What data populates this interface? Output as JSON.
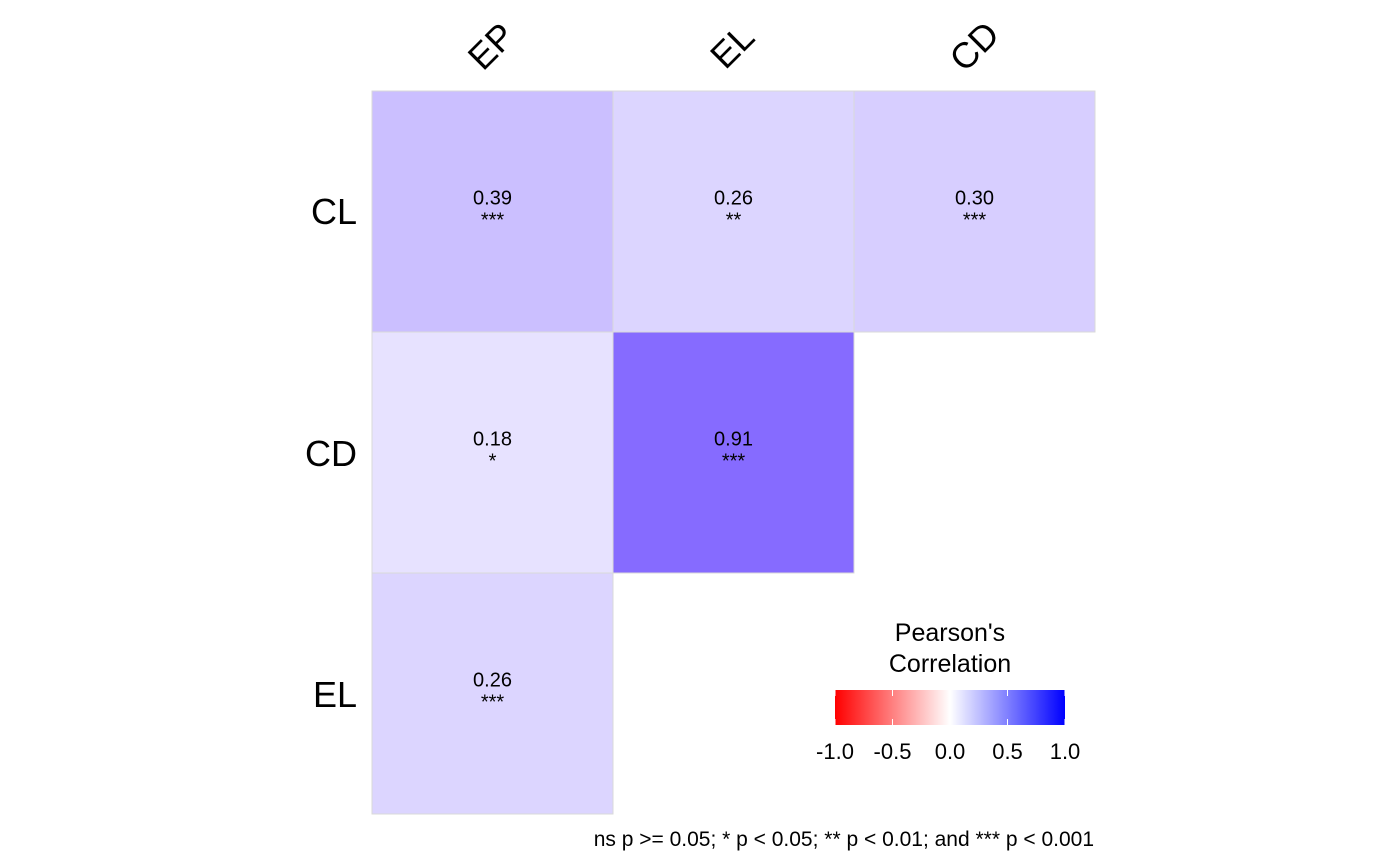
{
  "chart_data": {
    "type": "heatmap",
    "columns": [
      "EP",
      "EL",
      "CD"
    ],
    "rows": [
      "CL",
      "CD",
      "EL"
    ],
    "cells": [
      {
        "row": "CL",
        "col": "EP",
        "value": 0.39,
        "label": "0.39",
        "sig": "***"
      },
      {
        "row": "CL",
        "col": "EL",
        "value": 0.26,
        "label": "0.26",
        "sig": "**"
      },
      {
        "row": "CL",
        "col": "CD",
        "value": 0.3,
        "label": "0.30",
        "sig": "***"
      },
      {
        "row": "CD",
        "col": "EP",
        "value": 0.18,
        "label": "0.18",
        "sig": "*"
      },
      {
        "row": "CD",
        "col": "EL",
        "value": 0.91,
        "label": "0.91",
        "sig": "***"
      },
      {
        "row": "EL",
        "col": "EP",
        "value": 0.26,
        "label": "0.26",
        "sig": "***"
      }
    ],
    "legend": {
      "title_line1": "Pearson's",
      "title_line2": "Correlation",
      "ticks": [
        {
          "value": -1.0,
          "label": "-1.0"
        },
        {
          "value": -0.5,
          "label": "-0.5"
        },
        {
          "value": 0.0,
          "label": "0.0"
        },
        {
          "value": 0.5,
          "label": "0.5"
        },
        {
          "value": 1.0,
          "label": "1.0"
        }
      ],
      "range": [
        -1,
        1
      ],
      "colors": {
        "low": "#ff0000",
        "mid": "#ffffff",
        "high": "#0000ff"
      }
    },
    "caption": "ns p >= 0.05; * p < 0.05; ** p < 0.01; and *** p < 0.001",
    "mixed_color": "#7a5cff",
    "grid": false,
    "legend_position": "bottom-right"
  }
}
